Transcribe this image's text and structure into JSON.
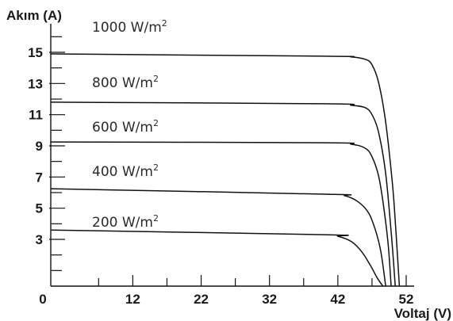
{
  "chart_data": {
    "type": "line",
    "xlabel": "Voltaj (V)",
    "ylabel": "Akım (A)",
    "xlim": [
      0,
      54
    ],
    "ylim": [
      0,
      16
    ],
    "x_ticks_labeled": [
      "0",
      "12",
      "22",
      "32",
      "42",
      "52"
    ],
    "y_ticks_labeled": [
      "3",
      "5",
      "7",
      "9",
      "11",
      "13",
      "15"
    ],
    "grid": false,
    "series": [
      {
        "name": "1000 W/m2",
        "label_text": "1000 W/m",
        "label_sup": "2",
        "points": [
          [
            0,
            14.9
          ],
          [
            40,
            14.75
          ],
          [
            44,
            14.7
          ],
          [
            46,
            14.55
          ],
          [
            47,
            14.2
          ],
          [
            48,
            13.0
          ],
          [
            49,
            10.5
          ],
          [
            50,
            6.5
          ],
          [
            50.5,
            3.5
          ],
          [
            51,
            0
          ]
        ]
      },
      {
        "name": "800 W/m2",
        "label_text": "800 W/m",
        "label_sup": "2",
        "points": [
          [
            0,
            11.8
          ],
          [
            40,
            11.7
          ],
          [
            44,
            11.6
          ],
          [
            46,
            11.45
          ],
          [
            47,
            11.0
          ],
          [
            48,
            9.8
          ],
          [
            49,
            7.2
          ],
          [
            49.8,
            3.5
          ],
          [
            50.4,
            0
          ]
        ]
      },
      {
        "name": "600 W/m2",
        "label_text": "600 W/m",
        "label_sup": "2",
        "points": [
          [
            0,
            9.25
          ],
          [
            40,
            9.2
          ],
          [
            44,
            9.1
          ],
          [
            46,
            8.85
          ],
          [
            47,
            8.3
          ],
          [
            48,
            7.0
          ],
          [
            48.8,
            4.8
          ],
          [
            49.4,
            2.5
          ],
          [
            49.8,
            0
          ]
        ]
      },
      {
        "name": "400 W/m2",
        "label_text": "400 W/m",
        "label_sup": "2",
        "points": [
          [
            0,
            6.25
          ],
          [
            40,
            5.9
          ],
          [
            43,
            5.8
          ],
          [
            45,
            5.4
          ],
          [
            46.5,
            4.7
          ],
          [
            47.5,
            3.6
          ],
          [
            48.3,
            2.2
          ],
          [
            49,
            0
          ]
        ]
      },
      {
        "name": "200 W/m2",
        "label_text": "200 W/m",
        "label_sup": "2",
        "points": [
          [
            0,
            3.6
          ],
          [
            40,
            3.3
          ],
          [
            42,
            3.2
          ],
          [
            44,
            2.85
          ],
          [
            45.5,
            2.2
          ],
          [
            46.8,
            1.3
          ],
          [
            47.8,
            0.5
          ],
          [
            48.6,
            0
          ]
        ]
      }
    ]
  }
}
